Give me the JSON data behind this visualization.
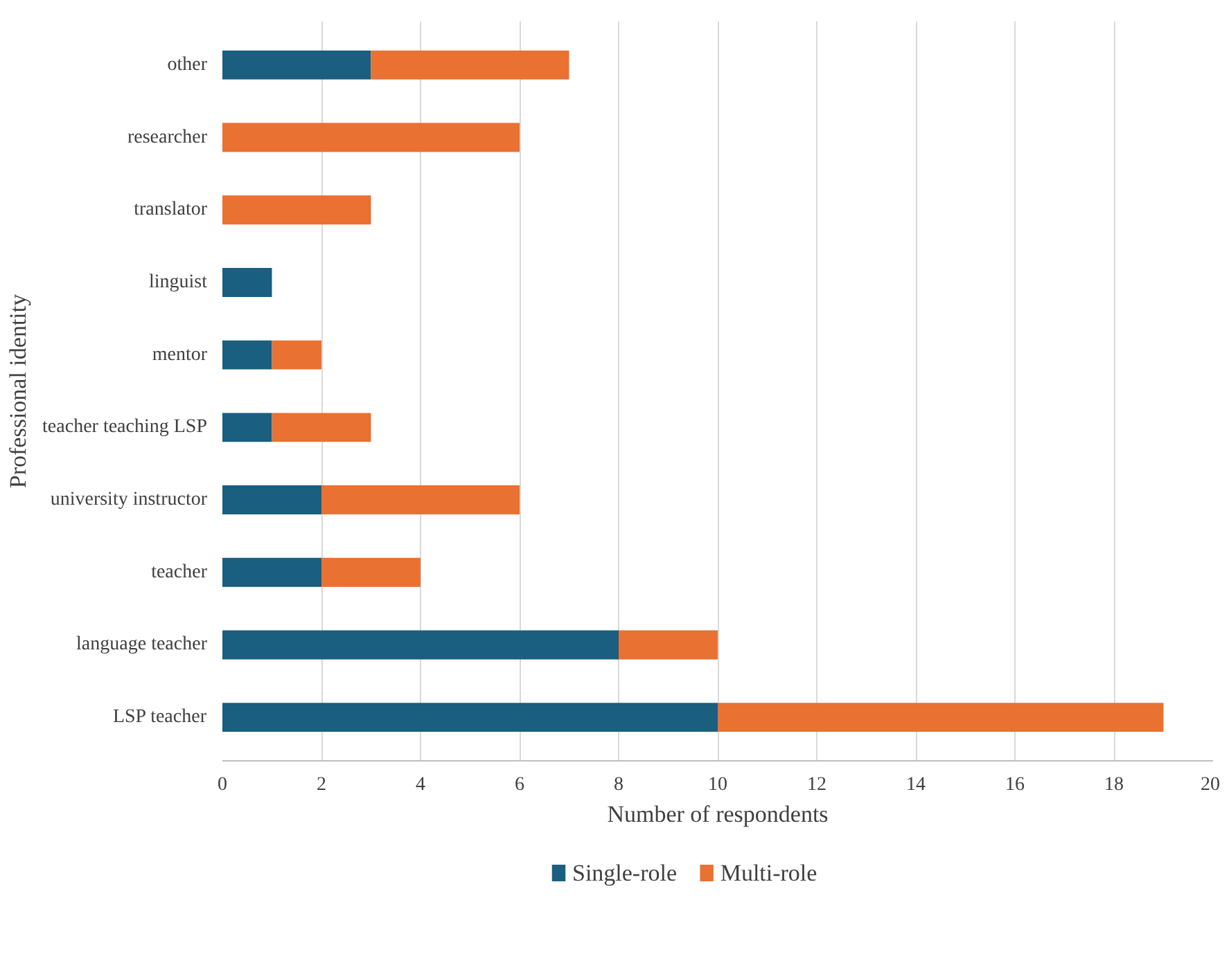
{
  "chart_data": {
    "type": "bar",
    "orientation": "horizontal",
    "stacked": true,
    "xlabel": "Number of respondents",
    "ylabel": "Professional identity",
    "categories": [
      "other",
      "researcher",
      "translator",
      "linguist",
      "mentor",
      "teacher teaching LSP",
      "university instructor",
      "teacher",
      "language teacher",
      "LSP teacher"
    ],
    "series": [
      {
        "name": "Single-role",
        "color": "#1a5e80",
        "values": [
          3,
          0,
          0,
          1,
          1,
          1,
          2,
          2,
          8,
          10
        ]
      },
      {
        "name": "Multi-role",
        "color": "#e97132",
        "values": [
          4,
          6,
          3,
          0,
          1,
          2,
          4,
          2,
          2,
          9
        ]
      }
    ],
    "xlim": [
      0,
      20
    ],
    "xticks": [
      0,
      2,
      4,
      6,
      8,
      10,
      12,
      14,
      16,
      18,
      20
    ],
    "grid": "x",
    "legend": "bottom"
  }
}
